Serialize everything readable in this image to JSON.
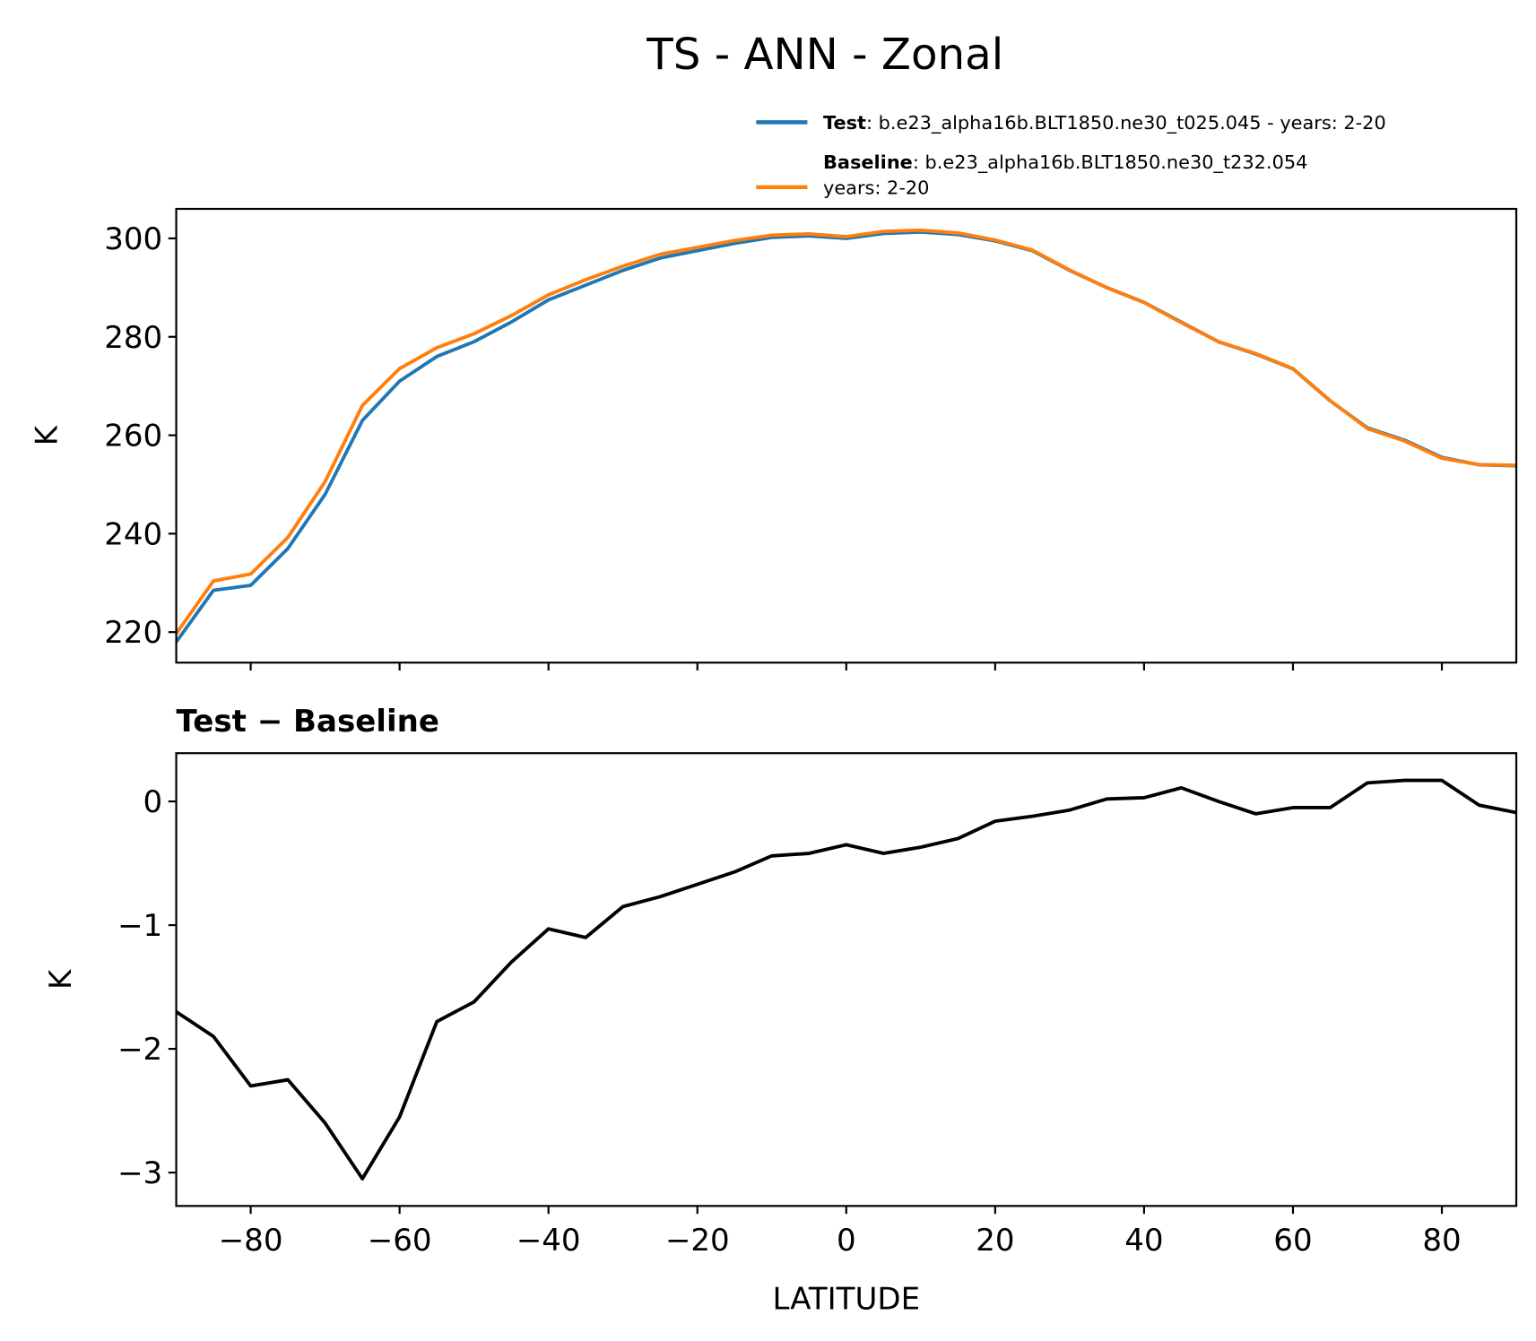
{
  "chart_data": [
    {
      "type": "line",
      "title": "TS - ANN - Zonal",
      "ylabel": "K",
      "x": [
        -90,
        -85,
        -80,
        -75,
        -70,
        -65,
        -60,
        -55,
        -50,
        -45,
        -40,
        -35,
        -30,
        -25,
        -20,
        -15,
        -10,
        -5,
        0,
        5,
        10,
        15,
        20,
        25,
        30,
        35,
        40,
        45,
        50,
        55,
        60,
        65,
        70,
        75,
        80,
        85,
        90
      ],
      "series": [
        {
          "name": "Test",
          "description": [
            ": b.e23_alpha16b.BLT1850.ne30_t025.045 - years: 2-20"
          ],
          "color": "#1f77b4",
          "values": [
            218,
            228.5,
            229.5,
            237,
            248,
            263,
            271,
            276,
            279,
            283,
            287.5,
            290.5,
            293.5,
            296,
            297.5,
            299,
            300.2,
            300.5,
            300,
            301,
            301.3,
            300.8,
            299.5,
            297.5,
            293.5,
            290,
            287,
            283,
            279,
            276.5,
            273.5,
            267,
            261.5,
            259,
            255.5,
            254,
            253.8
          ]
        },
        {
          "name": "Baseline",
          "description": [
            ": b.e23_alpha16b.BLT1850.ne30_t232.054",
            "years: 2-20"
          ],
          "color": "#ff7f0e",
          "values": [
            219.7,
            230.4,
            231.8,
            239.25,
            250.6,
            266.05,
            273.55,
            277.78,
            280.62,
            284.3,
            288.53,
            291.6,
            294.35,
            296.77,
            298.17,
            299.57,
            300.64,
            300.92,
            300.35,
            301.42,
            301.67,
            301.1,
            299.66,
            297.62,
            293.57,
            289.98,
            286.97,
            282.89,
            279,
            276.6,
            273.55,
            267.05,
            261.35,
            258.83,
            255.33,
            254.03,
            253.89
          ]
        }
      ],
      "xlim": [
        -90,
        90
      ],
      "xticks": [
        -80,
        -60,
        -40,
        -20,
        0,
        20,
        40,
        60,
        80
      ],
      "show_xtick_labels": false,
      "ylim": [
        213.8,
        306
      ],
      "yticks": [
        220,
        240,
        260,
        280,
        300
      ],
      "legend": "upper right"
    },
    {
      "type": "line",
      "title": "Test − Baseline",
      "ylabel": "K",
      "xlabel": "LATITUDE",
      "x": [
        -90,
        -85,
        -80,
        -75,
        -70,
        -65,
        -60,
        -55,
        -50,
        -45,
        -40,
        -35,
        -30,
        -25,
        -20,
        -15,
        -10,
        -5,
        0,
        5,
        10,
        15,
        20,
        25,
        30,
        35,
        40,
        45,
        50,
        55,
        60,
        65,
        70,
        75,
        80,
        85,
        90
      ],
      "series": [
        {
          "color": "#000000",
          "values": [
            -1.7,
            -1.9,
            -2.3,
            -2.25,
            -2.6,
            -3.05,
            -2.55,
            -1.78,
            -1.62,
            -1.3,
            -1.03,
            -1.1,
            -0.85,
            -0.77,
            -0.67,
            -0.57,
            -0.44,
            -0.42,
            -0.35,
            -0.42,
            -0.37,
            -0.3,
            -0.16,
            -0.12,
            -0.07,
            0.02,
            0.03,
            0.11,
            0,
            -0.1,
            -0.05,
            -0.05,
            0.15,
            0.17,
            0.17,
            -0.03,
            -0.09
          ]
        }
      ],
      "xlim": [
        -90,
        90
      ],
      "xticks": [
        {
          "value": -80,
          "label": "−80"
        },
        {
          "value": -60,
          "label": "−60"
        },
        {
          "value": -40,
          "label": "−40"
        },
        {
          "value": -20,
          "label": "−20"
        },
        0,
        20,
        40,
        60,
        80
      ],
      "show_xtick_labels": true,
      "ylim": [
        -3.27,
        0.39
      ],
      "yticks": [
        {
          "value": -3,
          "label": "−3"
        },
        {
          "value": -2,
          "label": "−2"
        },
        {
          "value": -1,
          "label": "−1"
        },
        0
      ]
    }
  ]
}
